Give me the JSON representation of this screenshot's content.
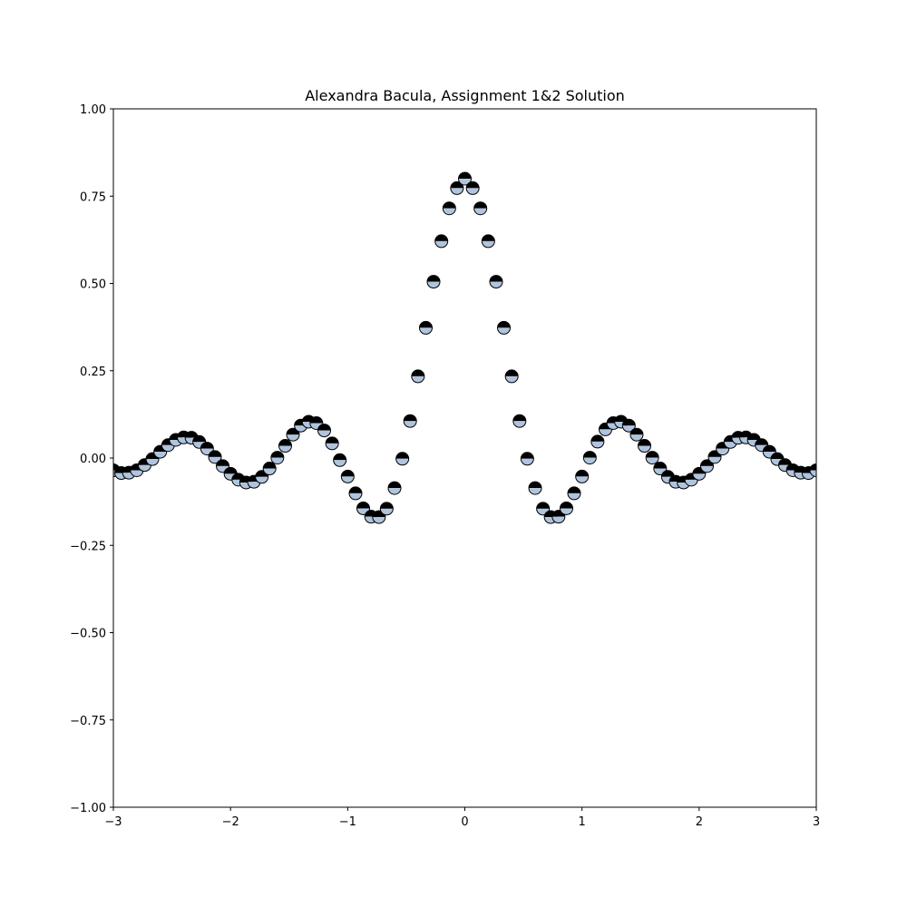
{
  "chart_data": {
    "type": "scatter",
    "title": "Alexandra Bacula, Assignment 1&2 Solution",
    "xlabel": "",
    "ylabel": "",
    "xlim": [
      -3,
      3
    ],
    "ylim": [
      -1,
      1
    ],
    "x_ticks": [
      -3,
      -2,
      -1,
      0,
      1,
      2,
      3
    ],
    "x_tick_labels": [
      "−3",
      "−2",
      "−1",
      "0",
      "1",
      "2",
      "3"
    ],
    "y_ticks": [
      -1.0,
      -0.75,
      -0.5,
      -0.25,
      0.0,
      0.25,
      0.5,
      0.75,
      1.0
    ],
    "y_tick_labels": [
      "−1.00",
      "−0.75",
      "−0.50",
      "−0.25",
      "0.00",
      "0.25",
      "0.50",
      "0.75",
      "1.00"
    ],
    "grid": false,
    "marker": {
      "style": "circle-half-filled",
      "top_color": "#000000",
      "bottom_color": "#b0c4de",
      "edge_color": "#000000"
    },
    "series": [
      {
        "x": [
          -3.0,
          -2.933,
          -2.867,
          -2.8,
          -2.733,
          -2.667,
          -2.6,
          -2.533,
          -2.467,
          -2.4,
          -2.333,
          -2.267,
          -2.2,
          -2.133,
          -2.067,
          -2.0,
          -1.933,
          -1.867,
          -1.8,
          -1.733,
          -1.667,
          -1.6,
          -1.533,
          -1.467,
          -1.4,
          -1.333,
          -1.267,
          -1.2,
          -1.133,
          -1.067,
          -1.0,
          -0.933,
          -0.867,
          -0.8,
          -0.733,
          -0.667,
          -0.6,
          -0.533,
          -0.467,
          -0.4,
          -0.333,
          -0.267,
          -0.2,
          -0.133,
          -0.067,
          0.0,
          0.067,
          0.133,
          0.2,
          0.267,
          0.333,
          0.4,
          0.467,
          0.533,
          0.6,
          0.667,
          0.733,
          0.8,
          0.867,
          0.933,
          1.0,
          1.067,
          1.133,
          1.2,
          1.267,
          1.333,
          1.4,
          1.467,
          1.533,
          1.6,
          1.667,
          1.733,
          1.8,
          1.867,
          1.933,
          2.0,
          2.067,
          2.133,
          2.2,
          2.267,
          2.333,
          2.4,
          2.467,
          2.533,
          2.6,
          2.667,
          2.733,
          2.8,
          2.867,
          2.933,
          3.0
        ],
        "y": [
          -0.035,
          -0.043,
          -0.042,
          -0.035,
          -0.02,
          -0.003,
          0.018,
          0.037,
          0.052,
          0.059,
          0.058,
          0.046,
          0.027,
          0.003,
          -0.023,
          -0.045,
          -0.062,
          -0.07,
          -0.068,
          -0.054,
          -0.03,
          0.001,
          0.035,
          0.067,
          0.093,
          0.104,
          0.1,
          0.079,
          0.042,
          -0.006,
          -0.053,
          -0.101,
          -0.144,
          -0.168,
          -0.169,
          -0.145,
          -0.086,
          -0.002,
          0.106,
          0.234,
          0.373,
          0.505,
          0.621,
          0.715,
          0.773,
          0.8,
          0.773,
          0.715,
          0.621,
          0.505,
          0.373,
          0.234,
          0.106,
          -0.002,
          -0.086,
          -0.145,
          -0.169,
          -0.168,
          -0.144,
          -0.101,
          -0.053,
          0.001,
          0.047,
          0.082,
          0.1,
          0.104,
          0.093,
          0.067,
          0.035,
          0.001,
          -0.03,
          -0.054,
          -0.068,
          -0.07,
          -0.062,
          -0.045,
          -0.023,
          0.003,
          0.027,
          0.046,
          0.058,
          0.059,
          0.052,
          0.037,
          0.018,
          -0.003,
          -0.02,
          -0.035,
          -0.042,
          -0.043,
          -0.035
        ]
      }
    ]
  }
}
